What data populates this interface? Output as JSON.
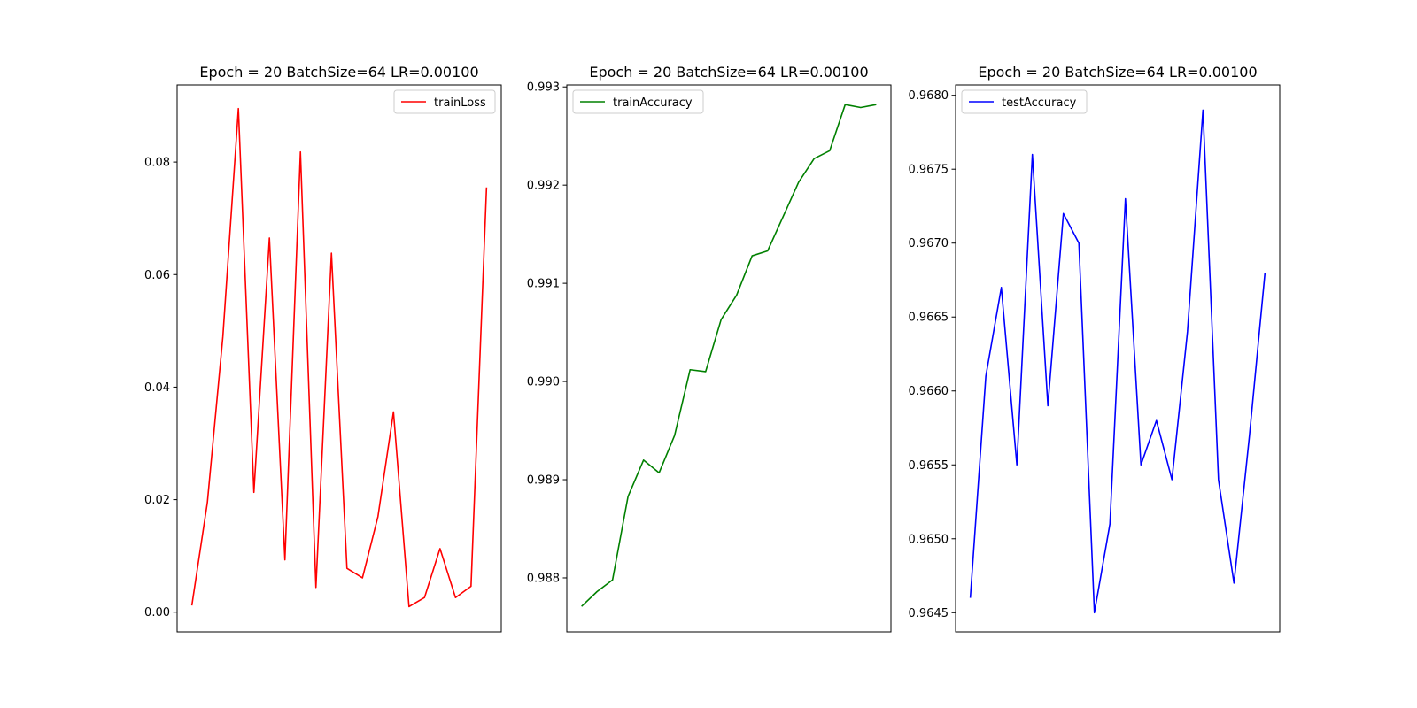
{
  "chart_data": [
    {
      "type": "line",
      "title": "Epoch = 20 BatchSize=64 LR=0.00100",
      "xlabel": "",
      "ylabel": "",
      "x": [
        1,
        2,
        3,
        4,
        5,
        6,
        7,
        8,
        9,
        10,
        11,
        12,
        13,
        14,
        15,
        16,
        17,
        18,
        19,
        20
      ],
      "series": [
        {
          "name": "trainLoss",
          "color": "#ff0000",
          "values": [
            0.0012,
            0.0195,
            0.049,
            0.0895,
            0.0213,
            0.0665,
            0.0093,
            0.0818,
            0.0044,
            0.0638,
            0.0078,
            0.0061,
            0.017,
            0.0356,
            0.001,
            0.0026,
            0.0113,
            0.0026,
            0.0046,
            0.0755
          ]
        }
      ],
      "yticks": [
        0.0,
        0.02,
        0.04,
        0.06,
        0.08
      ],
      "ytick_labels": [
        "0.00",
        "0.02",
        "0.04",
        "0.06",
        "0.08"
      ],
      "ylim": [
        -0.0035,
        0.0937
      ],
      "xlim": [
        0.05,
        20.95
      ],
      "show_xticks": false,
      "grid": false,
      "legend": "top-right"
    },
    {
      "type": "line",
      "title": "Epoch = 20 BatchSize=64 LR=0.00100",
      "xlabel": "",
      "ylabel": "",
      "x": [
        1,
        2,
        3,
        4,
        5,
        6,
        7,
        8,
        9,
        10,
        11,
        12,
        13,
        14,
        15,
        16,
        17,
        18,
        19,
        20
      ],
      "series": [
        {
          "name": "trainAccuracy",
          "color": "#008000",
          "values": [
            0.98771,
            0.98786,
            0.98798,
            0.98883,
            0.9892,
            0.98907,
            0.98945,
            0.99012,
            0.9901,
            0.99063,
            0.99088,
            0.99128,
            0.99133,
            0.99168,
            0.99203,
            0.99227,
            0.99235,
            0.99282,
            0.99279,
            0.99282
          ]
        }
      ],
      "yticks": [
        0.988,
        0.989,
        0.99,
        0.991,
        0.992,
        0.993
      ],
      "ytick_labels": [
        "0.988",
        "0.989",
        "0.990",
        "0.991",
        "0.992",
        "0.993"
      ],
      "ylim": [
        0.98745,
        0.99302
      ],
      "xlim": [
        0.05,
        20.95
      ],
      "show_xticks": false,
      "grid": false,
      "legend": "top-left"
    },
    {
      "type": "line",
      "title": "Epoch = 20 BatchSize=64 LR=0.00100",
      "xlabel": "",
      "ylabel": "",
      "x": [
        1,
        2,
        3,
        4,
        5,
        6,
        7,
        8,
        9,
        10,
        11,
        12,
        13,
        14,
        15,
        16,
        17,
        18,
        19,
        20
      ],
      "series": [
        {
          "name": "testAccuracy",
          "color": "#0000ff",
          "values": [
            0.9646,
            0.9661,
            0.9667,
            0.9655,
            0.9676,
            0.9659,
            0.9672,
            0.967,
            0.9645,
            0.9651,
            0.9673,
            0.9655,
            0.9658,
            0.9654,
            0.9664,
            0.9679,
            0.9654,
            0.9647,
            0.9657,
            0.9668
          ]
        }
      ],
      "yticks": [
        0.9645,
        0.965,
        0.9655,
        0.966,
        0.9665,
        0.967,
        0.9675,
        0.968
      ],
      "ytick_labels": [
        "0.9645",
        "0.9650",
        "0.9655",
        "0.9660",
        "0.9665",
        "0.9670",
        "0.9675",
        "0.9680"
      ],
      "ylim": [
        0.96437,
        0.96807
      ],
      "xlim": [
        0.05,
        20.95
      ],
      "show_xticks": false,
      "grid": false,
      "legend": "top-left"
    }
  ]
}
